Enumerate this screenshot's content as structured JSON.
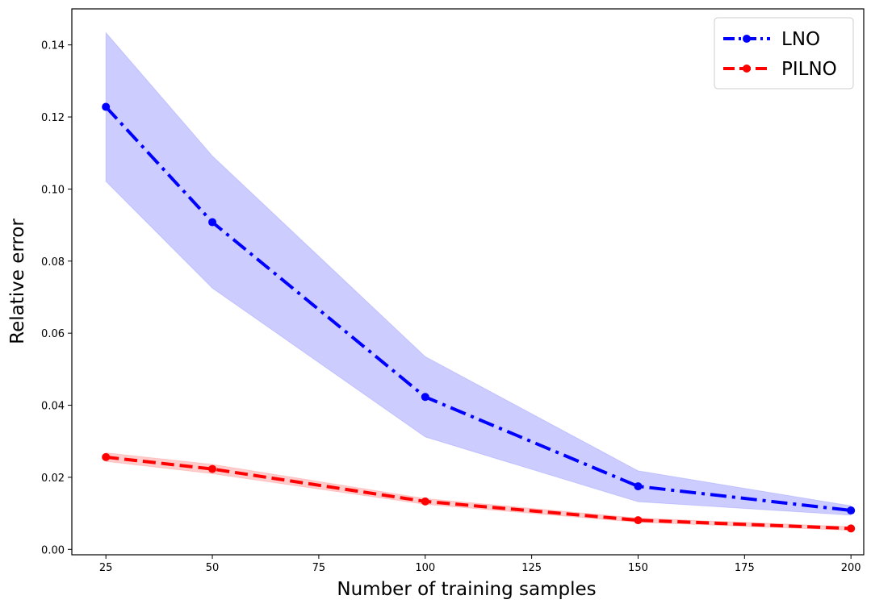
{
  "chart_data": {
    "type": "line",
    "title": "",
    "xlabel": "Number of training samples",
    "ylabel": "Relative error",
    "xlim": [
      17,
      203
    ],
    "ylim": [
      -0.0015,
      0.15
    ],
    "xticks": [
      25,
      50,
      75,
      100,
      125,
      150,
      175,
      200
    ],
    "xtick_labels": [
      "25",
      "50",
      "75",
      "100",
      "125",
      "150",
      "175",
      "200"
    ],
    "yticks": [
      0.0,
      0.02,
      0.04,
      0.06,
      0.08,
      0.1,
      0.12,
      0.14
    ],
    "ytick_labels": [
      "0.00",
      "0.02",
      "0.04",
      "0.06",
      "0.08",
      "0.10",
      "0.12",
      "0.14"
    ],
    "grid": false,
    "legend_position": "top-right",
    "series": [
      {
        "name": "LNO",
        "color": "#0000ff",
        "linestyle": "dashdot",
        "marker": "circle",
        "x": [
          25,
          50,
          100,
          150,
          200
        ],
        "values": [
          0.1228,
          0.0908,
          0.0423,
          0.0175,
          0.0108
        ],
        "band_lower": [
          0.1021,
          0.0725,
          0.0312,
          0.0132,
          0.0095
        ],
        "band_upper": [
          0.1434,
          0.1092,
          0.0535,
          0.0218,
          0.0121
        ],
        "band_color": "#0000ff",
        "band_opacity": 0.2
      },
      {
        "name": "PILNO",
        "color": "#ff0000",
        "linestyle": "dashed",
        "marker": "circle",
        "x": [
          25,
          50,
          100,
          150,
          200
        ],
        "values": [
          0.0256,
          0.0223,
          0.0133,
          0.0081,
          0.0058
        ],
        "band_lower": [
          0.0244,
          0.021,
          0.0125,
          0.0075,
          0.0053
        ],
        "band_upper": [
          0.0268,
          0.0236,
          0.0141,
          0.0087,
          0.0063
        ],
        "band_color": "#ff0000",
        "band_opacity": 0.2
      }
    ]
  }
}
